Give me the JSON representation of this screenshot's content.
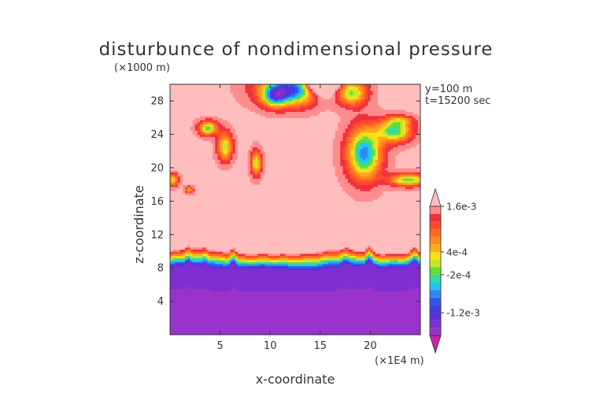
{
  "chart_data": {
    "type": "heatmap",
    "title": "disturbunce of nondimensional pressure",
    "xlabel": "x-coordinate",
    "ylabel": "z-coordinate",
    "x_unit": "(×1E4 m)",
    "y_unit": "(×1000 m)",
    "xlim": [
      0,
      25
    ],
    "ylim": [
      0,
      30
    ],
    "x_ticks": [
      5,
      10,
      15,
      20
    ],
    "y_ticks": [
      4,
      8,
      12,
      16,
      20,
      24,
      28
    ],
    "annotations": [
      "y=100 m",
      "t=15200 sec"
    ],
    "colorbar": {
      "labels": [
        {
          "text": "1.6e-3",
          "value": 0.0016
        },
        {
          "text": "4e-4",
          "value": 0.0004
        },
        {
          "text": "-2e-4",
          "value": -0.0002
        },
        {
          "text": "-1.2e-3",
          "value": -0.0012
        }
      ],
      "levels": [
        -0.0018,
        -0.0016,
        -0.0014,
        -0.0012,
        -0.001,
        -0.0008,
        -0.0006,
        -0.0004,
        -0.0002,
        0,
        0.0002,
        0.0004,
        0.0006,
        0.0008,
        0.001,
        0.0012,
        0.0014,
        0.0016
      ],
      "colors": [
        "#cc22aa",
        "#9933cc",
        "#7f2fd0",
        "#5d2fd6",
        "#3f3fdf",
        "#2f55ee",
        "#2f88f5",
        "#22c4f2",
        "#2fdca6",
        "#66dd33",
        "#c8e62a",
        "#ffe01a",
        "#ffaa1e",
        "#ff8a1e",
        "#ff6a2a",
        "#ff4a2a",
        "#f0303a",
        "#ff8c8c",
        "#ffbdbd"
      ]
    },
    "field_description": {
      "lower_region_value": -0.0018,
      "upper_region_value": 0.0018,
      "transition_layer_z_range": [
        7.5,
        10.5
      ]
    }
  }
}
